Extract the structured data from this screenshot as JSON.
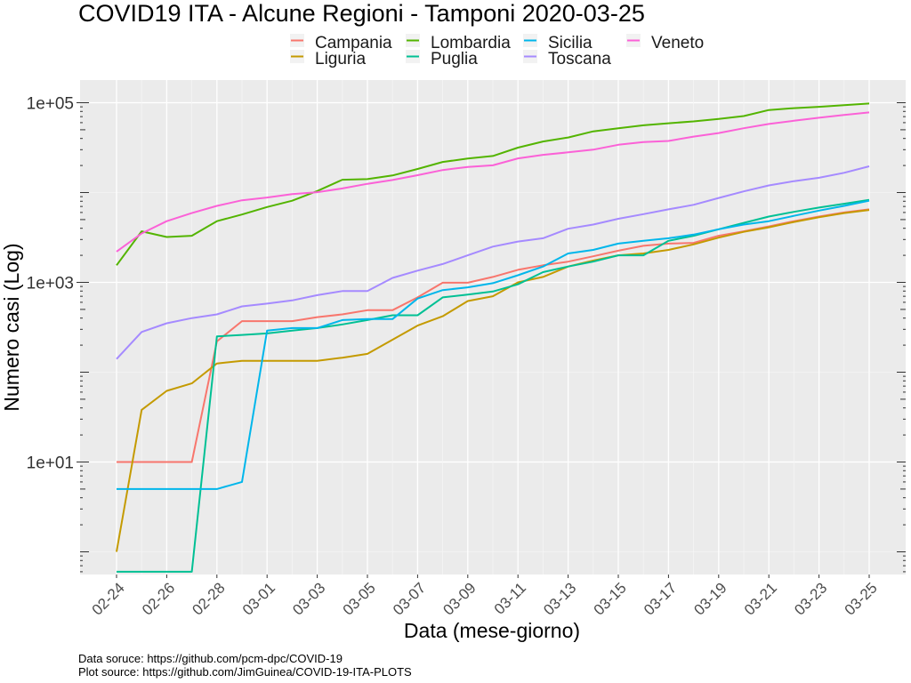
{
  "chart_data": {
    "type": "line",
    "title": "COVID19 ITA - Alcune Regioni - Tamponi 2020-03-25",
    "xlabel": "Data (mese-giorno)",
    "ylabel": "Numero casi (Log)",
    "y_scale": "log10",
    "ylim": [
      0.55,
      150000
    ],
    "yticks": [
      10,
      1000,
      100000
    ],
    "ytick_labels": [
      "1e+01",
      "1e+03",
      "1e+05"
    ],
    "x": [
      "02-24",
      "02-25",
      "02-26",
      "02-27",
      "02-28",
      "02-29",
      "03-01",
      "03-02",
      "03-03",
      "03-04",
      "03-05",
      "03-06",
      "03-07",
      "03-08",
      "03-09",
      "03-10",
      "03-11",
      "03-12",
      "03-13",
      "03-14",
      "03-15",
      "03-16",
      "03-17",
      "03-18",
      "03-19",
      "03-20",
      "03-21",
      "03-22",
      "03-23",
      "03-24",
      "03-25"
    ],
    "xtick_labels": [
      "02-24",
      "02-26",
      "02-28",
      "03-01",
      "03-03",
      "03-05",
      "03-07",
      "03-09",
      "03-11",
      "03-13",
      "03-15",
      "03-17",
      "03-19",
      "03-21",
      "03-23",
      "03-25"
    ],
    "legend_position": "top",
    "grid": true,
    "panel_background": "#ebebeb",
    "series": [
      {
        "name": "Campania",
        "color": "#F8766D",
        "values": [
          10,
          10,
          10,
          10,
          220,
          370,
          370,
          370,
          410,
          440,
          490,
          490,
          680,
          990,
          990,
          1150,
          1380,
          1550,
          1700,
          1950,
          2250,
          2550,
          2700,
          2750,
          3300,
          3700,
          4200,
          4800,
          5400,
          6000,
          6500
        ]
      },
      {
        "name": "Liguria",
        "color": "#C49A00",
        "values": [
          1,
          38,
          62,
          75,
          125,
          134,
          134,
          134,
          134,
          145,
          160,
          230,
          330,
          420,
          620,
          700,
          1000,
          1150,
          1500,
          1750,
          2000,
          2100,
          2300,
          2650,
          3150,
          3650,
          4100,
          4700,
          5300,
          5900,
          6400
        ]
      },
      {
        "name": "Lombardia",
        "color": "#53B400",
        "values": [
          1550,
          3700,
          3200,
          3300,
          4800,
          5700,
          6900,
          8100,
          10400,
          13900,
          14100,
          15500,
          18300,
          21900,
          23900,
          25500,
          31600,
          37000,
          41000,
          48000,
          52000,
          56000,
          59000,
          62000,
          66000,
          71000,
          83000,
          87000,
          90000,
          94000,
          98000
        ]
      },
      {
        "name": "Puglia",
        "color": "#00C094",
        "values": [
          0.6,
          0.6,
          0.6,
          0.6,
          250,
          260,
          270,
          290,
          310,
          340,
          380,
          430,
          430,
          680,
          730,
          790,
          950,
          1300,
          1500,
          1700,
          2000,
          2000,
          2900,
          3300,
          3900,
          4600,
          5400,
          6100,
          6800,
          7500,
          8300
        ]
      },
      {
        "name": "Sicilia",
        "color": "#00B6EB",
        "values": [
          5,
          5,
          5,
          5,
          5,
          6,
          290,
          310,
          310,
          380,
          390,
          390,
          660,
          820,
          880,
          980,
          1200,
          1500,
          2100,
          2300,
          2700,
          2900,
          3100,
          3400,
          3900,
          4400,
          4800,
          5500,
          6300,
          7100,
          8100
        ]
      },
      {
        "name": "Toscana",
        "color": "#A58AFF",
        "values": [
          140,
          280,
          350,
          400,
          440,
          540,
          580,
          630,
          720,
          800,
          800,
          1120,
          1350,
          1600,
          2000,
          2500,
          2850,
          3100,
          3950,
          4400,
          5100,
          5750,
          6500,
          7300,
          8700,
          10300,
          12000,
          13400,
          14600,
          16600,
          19600
        ]
      },
      {
        "name": "Veneto",
        "color": "#FB61D7",
        "values": [
          2200,
          3500,
          4800,
          5900,
          7100,
          8200,
          8800,
          9600,
          10100,
          11100,
          12500,
          13800,
          15600,
          17800,
          19300,
          20100,
          24000,
          26300,
          28000,
          30000,
          34000,
          36500,
          37500,
          42000,
          46000,
          52000,
          58000,
          63000,
          68000,
          73000,
          78000
        ]
      }
    ]
  },
  "caption": {
    "line1": "Data soruce: https://github.com/pcm-dpc/COVID-19",
    "line2": "Plot source: https://github.com/JimGuinea/COVID-19-ITA-PLOTS"
  }
}
